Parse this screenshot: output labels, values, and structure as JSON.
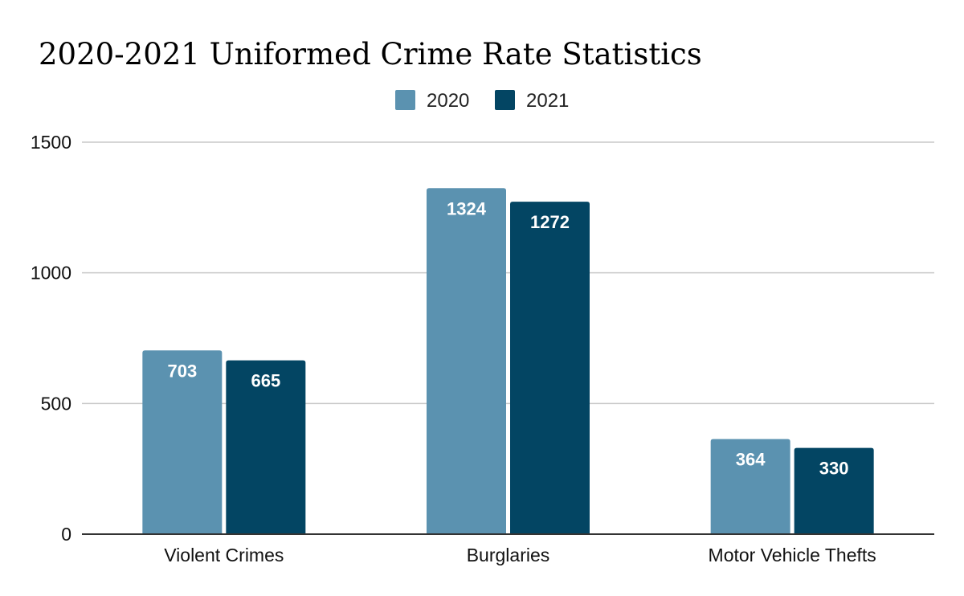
{
  "chart_data": {
    "type": "bar",
    "title": "2020-2021 Uniformed Crime Rate Statistics",
    "categories": [
      "Violent Crimes",
      "Burglaries",
      "Motor Vehicle Thefts"
    ],
    "series": [
      {
        "name": "2020",
        "values": [
          703,
          1324,
          364
        ],
        "color": "#5b92b0"
      },
      {
        "name": "2021",
        "values": [
          665,
          1272,
          330
        ],
        "color": "#034563"
      }
    ],
    "yticks": [
      0,
      500,
      1000,
      1500
    ],
    "ylim": [
      0,
      1500
    ],
    "grid": true,
    "legend_position": "top-center",
    "data_labels": true
  }
}
